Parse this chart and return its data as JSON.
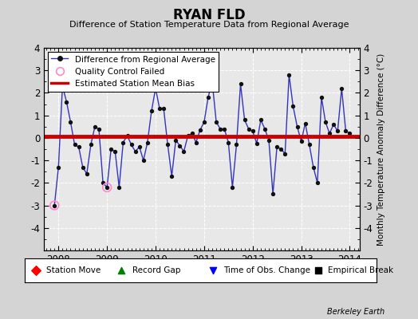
{
  "title": "RYAN FLD",
  "subtitle": "Difference of Station Temperature Data from Regional Average",
  "ylabel": "Monthly Temperature Anomaly Difference (°C)",
  "bias": 0.05,
  "ylim": [
    -5,
    4
  ],
  "xlim": [
    2007.7,
    2014.2
  ],
  "xticks": [
    2008,
    2009,
    2010,
    2011,
    2012,
    2013,
    2014
  ],
  "yticks": [
    -4,
    -3,
    -2,
    -1,
    0,
    1,
    2,
    3,
    4
  ],
  "background_color": "#d4d4d4",
  "plot_bg_color": "#e8e8e8",
  "line_color": "#3333bb",
  "dot_color": "#111111",
  "bias_color": "#cc0000",
  "qc_fail_color": "#ff88cc",
  "grid_color": "#ffffff",
  "data": {
    "x": [
      2007.917,
      2008.0,
      2008.083,
      2008.167,
      2008.25,
      2008.333,
      2008.417,
      2008.5,
      2008.583,
      2008.667,
      2008.75,
      2008.833,
      2008.917,
      2009.0,
      2009.083,
      2009.167,
      2009.25,
      2009.333,
      2009.417,
      2009.5,
      2009.583,
      2009.667,
      2009.75,
      2009.833,
      2009.917,
      2010.0,
      2010.083,
      2010.167,
      2010.25,
      2010.333,
      2010.417,
      2010.5,
      2010.583,
      2010.667,
      2010.75,
      2010.833,
      2010.917,
      2011.0,
      2011.083,
      2011.167,
      2011.25,
      2011.333,
      2011.417,
      2011.5,
      2011.583,
      2011.667,
      2011.75,
      2011.833,
      2011.917,
      2012.0,
      2012.083,
      2012.167,
      2012.25,
      2012.333,
      2012.417,
      2012.5,
      2012.583,
      2012.667,
      2012.75,
      2012.833,
      2012.917,
      2013.0,
      2013.083,
      2013.167,
      2013.25,
      2013.333,
      2013.417,
      2013.5,
      2013.583,
      2013.667,
      2013.75,
      2013.833,
      2013.917,
      2014.0
    ],
    "y": [
      -3.0,
      -1.3,
      2.3,
      1.6,
      0.7,
      -0.3,
      -0.4,
      -1.3,
      -1.6,
      -0.3,
      0.5,
      0.4,
      -2.0,
      -2.2,
      -0.5,
      -0.6,
      -2.2,
      -0.2,
      0.1,
      -0.3,
      -0.6,
      -0.4,
      -1.0,
      -0.2,
      1.2,
      2.2,
      1.3,
      1.3,
      -0.3,
      -1.7,
      -0.1,
      -0.35,
      -0.6,
      0.1,
      0.2,
      -0.2,
      0.35,
      0.7,
      1.8,
      2.5,
      0.7,
      0.4,
      0.4,
      -0.2,
      -2.2,
      -0.3,
      2.4,
      0.8,
      0.4,
      0.3,
      -0.25,
      0.8,
      0.4,
      -0.1,
      -2.5,
      -0.4,
      -0.5,
      -0.7,
      2.8,
      1.4,
      0.5,
      -0.15,
      0.65,
      -0.3,
      -1.3,
      -2.0,
      1.8,
      0.7,
      0.2,
      0.6,
      0.3,
      2.2,
      0.3,
      0.2
    ],
    "qc_fail_indices": [
      0,
      13
    ]
  }
}
